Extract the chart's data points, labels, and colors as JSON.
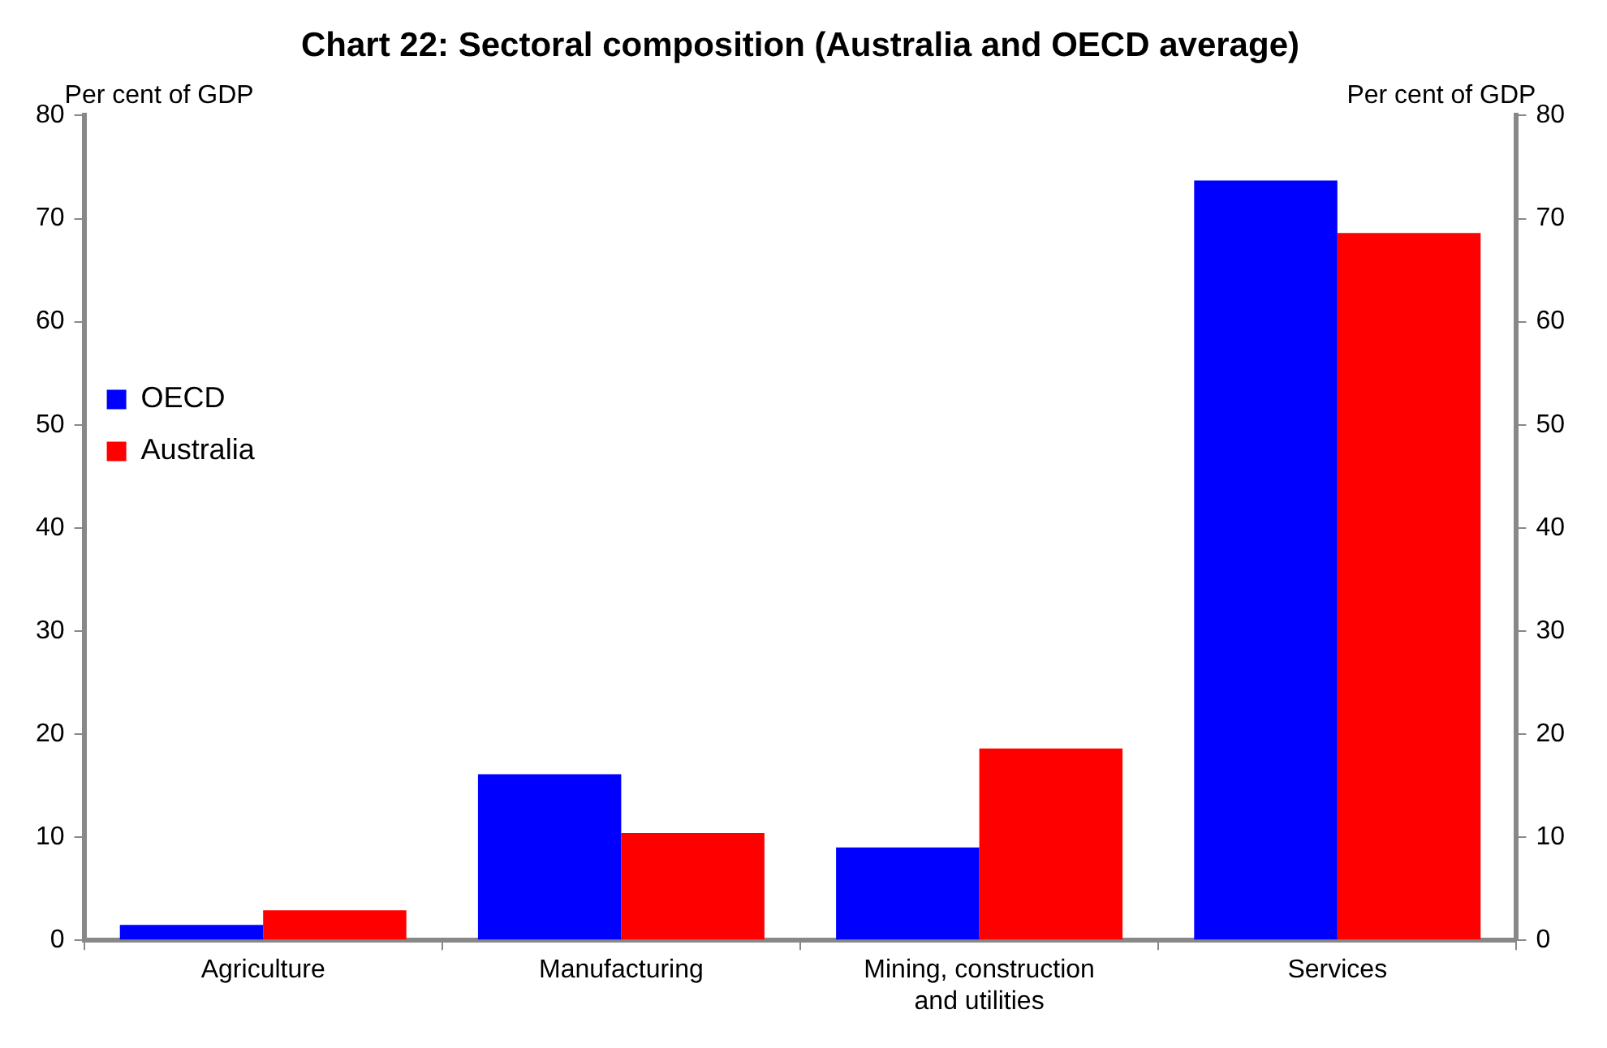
{
  "chart_data": {
    "type": "bar",
    "title": "Chart 22: Sectoral composition (Australia and OECD average)",
    "ylabel": "Per cent of GDP",
    "y2label": "Per cent of GDP",
    "categories": [
      "Agriculture",
      "Manufacturing",
      "Mining, construction and utilities",
      "Services"
    ],
    "series": [
      {
        "name": "OECD",
        "color": "#0000ff",
        "values": [
          1.5,
          16.1,
          9.0,
          73.7
        ]
      },
      {
        "name": "Australia",
        "color": "#ff0000",
        "values": [
          2.9,
          10.4,
          18.6,
          68.6
        ]
      }
    ],
    "ylim": [
      0,
      80
    ],
    "yticks": [
      0,
      10,
      20,
      30,
      40,
      50,
      60,
      70,
      80
    ],
    "y2lim": [
      0,
      80
    ],
    "y2ticks": [
      0,
      10,
      20,
      30,
      40,
      50,
      60,
      70,
      80
    ],
    "legend": "top",
    "grid": false
  }
}
